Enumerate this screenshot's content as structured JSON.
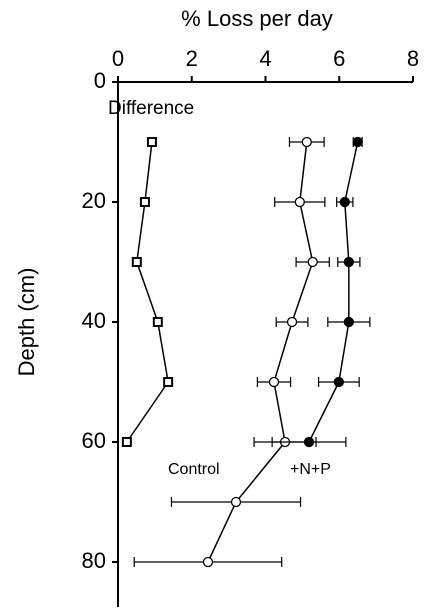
{
  "chart_data": {
    "type": "profile",
    "title": "% Loss per day",
    "y_label": "Depth (cm)",
    "depth": [
      10,
      20,
      30,
      40,
      50,
      60,
      70,
      80
    ],
    "series": [
      {
        "name": "Difference",
        "marker": "square",
        "color": "#000000",
        "values": [
          0.92,
          0.73,
          0.51,
          1.08,
          1.36,
          0.24,
          null,
          null
        ],
        "errors": null
      },
      {
        "name": "Control",
        "marker": "open-circle",
        "color": "#000000",
        "values": [
          5.12,
          4.93,
          5.28,
          4.72,
          4.23,
          4.53,
          3.2,
          2.44
        ],
        "errors": [
          0.47,
          0.68,
          0.45,
          0.43,
          0.45,
          0.84,
          1.75,
          2.0
        ]
      },
      {
        "name": "+N+P",
        "marker": "filled-circle",
        "color": "#000000",
        "values": [
          6.5,
          6.15,
          6.26,
          6.26,
          5.99,
          5.18,
          null,
          null
        ],
        "errors": [
          0.12,
          0.22,
          0.3,
          0.57,
          0.55,
          1.0,
          null,
          null
        ]
      }
    ],
    "xlim": [
      0,
      8
    ],
    "xticks": [
      0,
      2,
      4,
      6,
      8
    ],
    "ylim": [
      0,
      87.5
    ],
    "yticks": [
      0,
      20,
      40,
      60,
      80
    ]
  }
}
